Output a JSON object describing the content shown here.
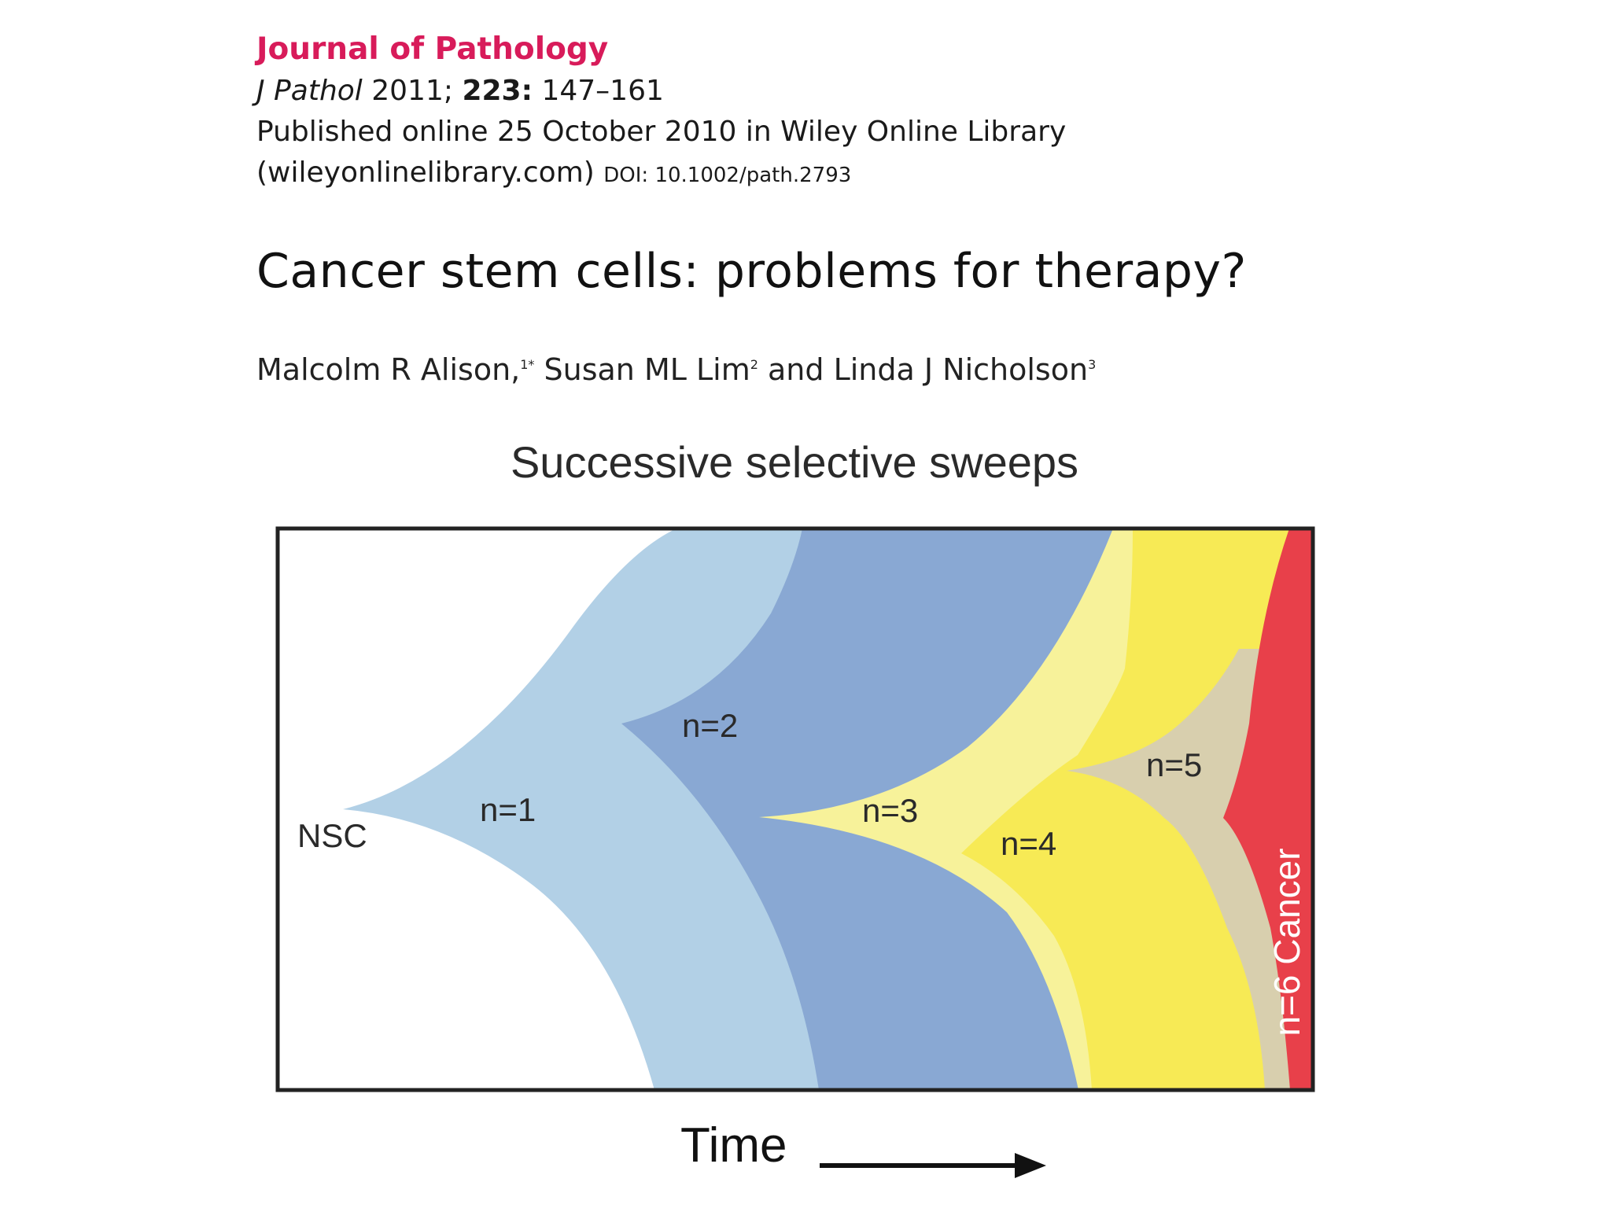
{
  "header": {
    "journal_name": "Journal of Pathology",
    "citation_journal": "J Pathol",
    "citation_year": "2011;",
    "citation_volume": "223:",
    "citation_pages": "147–161",
    "published_line": "Published online 25 October 2010 in Wiley Online Library",
    "site": "(wileyonlinelibrary.com)",
    "doi": "DOI: 10.1002/path.2793"
  },
  "article": {
    "title": "Cancer stem cells: problems for therapy?",
    "author_1": "Malcolm R Alison,",
    "author_1_mark": "1*",
    "author_2": " Susan ML Lim",
    "author_2_mark": "2",
    "author_connector": " and ",
    "author_3": "Linda J Nicholson",
    "author_3_mark": "3"
  },
  "figure": {
    "title": "Successive selective sweeps",
    "x_label": "Time",
    "labels": {
      "nsc": "NSC",
      "n1": "n=1",
      "n2": "n=2",
      "n3": "n=3",
      "n4": "n=4",
      "n5": "n=5",
      "n6": "n=6 Cancer"
    },
    "colors": {
      "nsc": "#ffffff",
      "n1": "#b2d0e6",
      "n2": "#89a8d3",
      "n3": "#f7f29a",
      "n4": "#f7ea55",
      "n5": "#d8cfae",
      "n6": "#e8404a",
      "frame": "#222222"
    }
  }
}
